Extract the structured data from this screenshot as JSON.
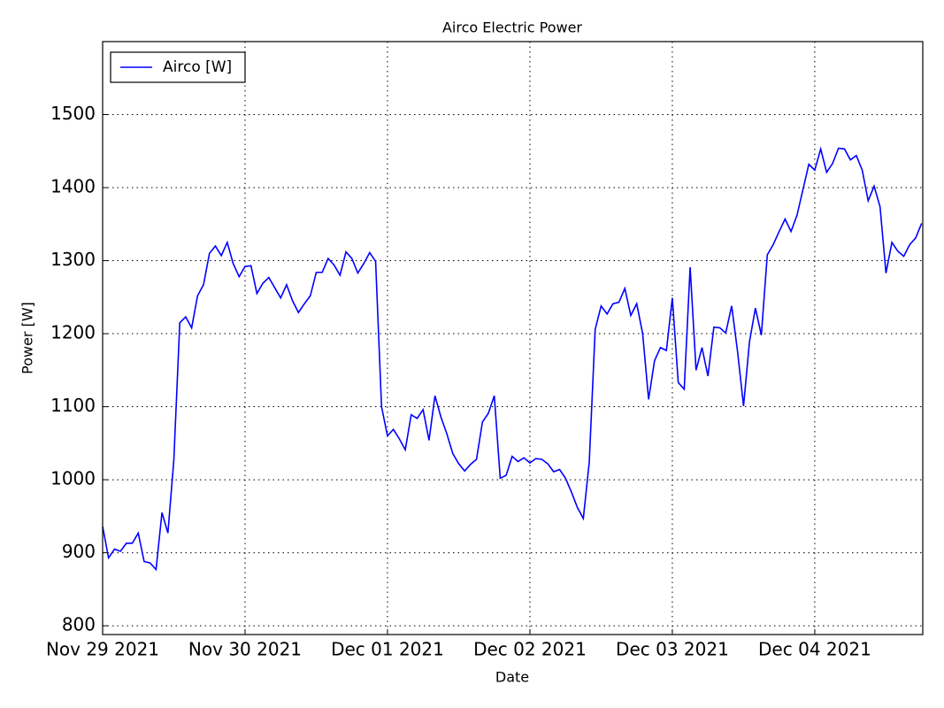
{
  "chart_data": {
    "type": "line",
    "title": "Airco Electric Power",
    "x_label": "Date",
    "y_label": "Power [W]",
    "x": [
      0,
      1,
      2,
      3,
      4,
      5,
      6,
      7,
      8,
      9,
      10,
      11,
      12,
      13,
      14,
      15,
      16,
      17,
      18,
      19,
      20,
      21,
      22,
      23,
      24,
      25,
      26,
      27,
      28,
      29,
      30,
      31,
      32,
      33,
      34,
      35,
      36,
      37,
      38,
      39,
      40,
      41,
      42,
      43,
      44,
      45,
      46,
      47,
      48,
      49,
      50,
      51,
      52,
      53,
      54,
      55,
      56,
      57,
      58,
      59,
      60,
      61,
      62,
      63,
      64,
      65,
      66,
      67,
      68,
      69,
      70,
      71,
      72,
      73,
      74,
      75,
      76,
      77,
      78,
      79,
      80,
      81,
      82,
      83,
      84,
      85,
      86,
      87,
      88,
      89,
      90,
      91,
      92,
      93,
      94,
      95,
      96,
      97,
      98,
      99,
      100,
      101,
      102,
      103,
      104,
      105,
      106,
      107,
      108,
      109,
      110,
      111,
      112,
      113,
      114,
      115,
      116,
      117,
      118,
      119,
      120,
      121,
      122,
      123,
      124,
      125,
      126,
      127,
      128,
      129,
      130,
      131,
      132,
      133,
      134,
      135,
      136,
      137,
      138
    ],
    "series": [
      {
        "name": "Airco [W]",
        "color": "#0000ff",
        "values": [
          936,
          893,
          905,
          902,
          913,
          913,
          927,
          888,
          886,
          877,
          955,
          927,
          1027,
          1215,
          1223,
          1208,
          1252,
          1267,
          1310,
          1320,
          1307,
          1325,
          1296,
          1278,
          1292,
          1293,
          1255,
          1269,
          1277,
          1263,
          1249,
          1267,
          1245,
          1229,
          1241,
          1252,
          1284,
          1284,
          1303,
          1294,
          1280,
          1312,
          1303,
          1283,
          1296,
          1311,
          1299,
          1100,
          1060,
          1069,
          1056,
          1041,
          1089,
          1084,
          1096,
          1054,
          1115,
          1086,
          1063,
          1036,
          1022,
          1012,
          1021,
          1028,
          1079,
          1091,
          1115,
          1002,
          1006,
          1032,
          1025,
          1030,
          1023,
          1029,
          1028,
          1022,
          1011,
          1014,
          1002,
          983,
          962,
          947,
          1024,
          1206,
          1238,
          1227,
          1241,
          1243,
          1262,
          1225,
          1241,
          1200,
          1110,
          1163,
          1181,
          1177,
          1249,
          1133,
          1124,
          1291,
          1150,
          1181,
          1142,
          1209,
          1208,
          1201,
          1238,
          1175,
          1101,
          1189,
          1235,
          1198,
          1308,
          1322,
          1340,
          1357,
          1340,
          1362,
          1397,
          1432,
          1424,
          1453,
          1421,
          1433,
          1454,
          1453,
          1438,
          1444,
          1424,
          1382,
          1402,
          1374,
          1283,
          1325,
          1313,
          1306,
          1322,
          1331,
          1351
        ]
      }
    ],
    "xlim": [
      0,
      138.2
    ],
    "ylim": [
      788,
      1600
    ],
    "xticks": [
      {
        "value": 0,
        "label": "Nov 29 2021"
      },
      {
        "value": 24,
        "label": "Nov 30 2021"
      },
      {
        "value": 48,
        "label": "Dec 01 2021"
      },
      {
        "value": 72,
        "label": "Dec 02 2021"
      },
      {
        "value": 96,
        "label": "Dec 03 2021"
      },
      {
        "value": 120,
        "label": "Dec 04 2021"
      }
    ],
    "yticks": [
      800,
      900,
      1000,
      1100,
      1200,
      1300,
      1400,
      1500
    ],
    "grid": true,
    "legend": "upper-left"
  }
}
